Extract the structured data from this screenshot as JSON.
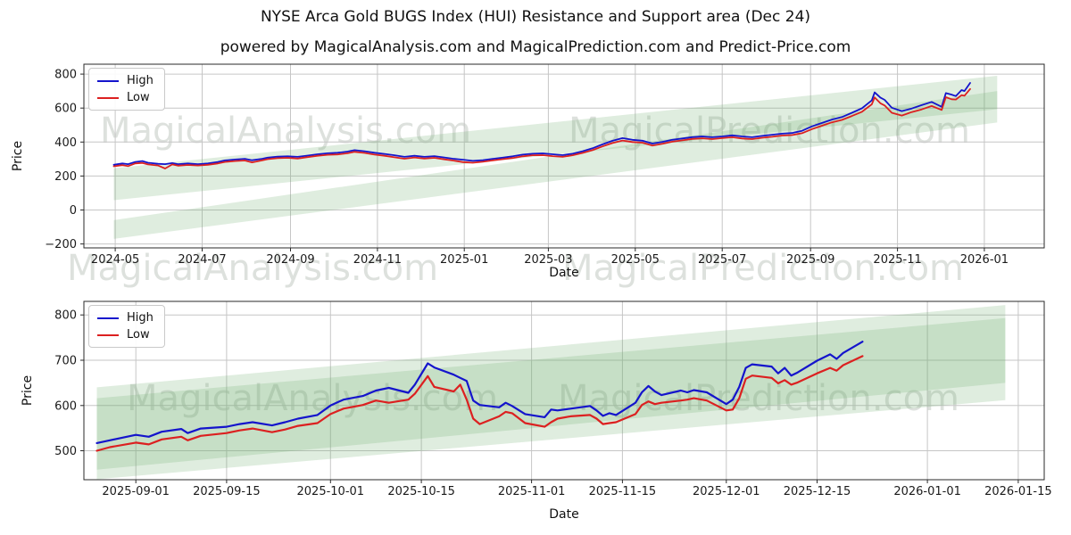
{
  "figure": {
    "title": "NYSE Arca Gold BUGS Index (HUI) Resistance and Support area (Dec 24)",
    "subtitle": "powered by MagicalAnalysis.com and MagicalPrediction.com and Predict-Price.com",
    "watermark_left": "MagicalAnalysis.com",
    "watermark_right": "MagicalPrediction.com"
  },
  "colors": {
    "high": "#1414cc",
    "low": "#dc2020",
    "band": "#6eaf6e",
    "grid": "#c6c6c6",
    "spine": "#2a2a2a",
    "text": "#1a1a1a"
  },
  "chart_data": [
    {
      "type": "line",
      "name": "full-history",
      "xlabel": "Date",
      "ylabel": "Price",
      "grid": true,
      "legend": {
        "position": "upper-left",
        "entries": [
          "High",
          "Low"
        ]
      },
      "x_domain": [
        "2024-04-09",
        "2026-02-12"
      ],
      "y_domain": [
        -223,
        858
      ],
      "x_ticks": [
        {
          "label": "2024-05",
          "date": "2024-05-01"
        },
        {
          "label": "2024-07",
          "date": "2024-07-01"
        },
        {
          "label": "2024-09",
          "date": "2024-09-01"
        },
        {
          "label": "2024-11",
          "date": "2024-11-01"
        },
        {
          "label": "2025-01",
          "date": "2025-01-01"
        },
        {
          "label": "2025-03",
          "date": "2025-03-01"
        },
        {
          "label": "2025-05",
          "date": "2025-05-01"
        },
        {
          "label": "2025-07",
          "date": "2025-07-01"
        },
        {
          "label": "2025-09",
          "date": "2025-09-01"
        },
        {
          "label": "2025-11",
          "date": "2025-11-01"
        },
        {
          "label": "2026-01",
          "date": "2026-01-01"
        }
      ],
      "y_ticks": [
        {
          "label": "−200",
          "value": -200
        },
        {
          "label": "0",
          "value": 0
        },
        {
          "label": "200",
          "value": 200
        },
        {
          "label": "400",
          "value": 400
        },
        {
          "label": "600",
          "value": 600
        },
        {
          "label": "800",
          "value": 800
        }
      ],
      "bands": [
        {
          "name": "resistance-area-band",
          "x0": "2024-04-30",
          "x1": "2026-01-10",
          "top": [
            245,
            790
          ],
          "bottom": [
            58,
            593
          ]
        },
        {
          "name": "support-area-band",
          "x0": "2024-04-30",
          "x1": "2026-01-10",
          "top": [
            -60,
            700
          ],
          "bottom": [
            -170,
            515
          ]
        }
      ],
      "series_names": [
        "High",
        "Low"
      ],
      "points": [
        [
          "2024-04-30",
          266,
          257
        ],
        [
          "2024-05-06",
          274,
          264
        ],
        [
          "2024-05-10",
          270,
          258
        ],
        [
          "2024-05-15",
          283,
          274
        ],
        [
          "2024-05-20",
          288,
          277
        ],
        [
          "2024-05-24",
          278,
          268
        ],
        [
          "2024-05-31",
          272,
          262
        ],
        [
          "2024-06-05",
          270,
          244
        ],
        [
          "2024-06-10",
          276,
          268
        ],
        [
          "2024-06-14",
          270,
          261
        ],
        [
          "2024-06-21",
          274,
          265
        ],
        [
          "2024-06-28",
          270,
          262
        ],
        [
          "2024-07-05",
          274,
          266
        ],
        [
          "2024-07-12",
          283,
          274
        ],
        [
          "2024-07-17",
          292,
          283
        ],
        [
          "2024-07-24",
          297,
          288
        ],
        [
          "2024-07-31",
          301,
          291
        ],
        [
          "2024-08-05",
          293,
          280
        ],
        [
          "2024-08-12",
          301,
          292
        ],
        [
          "2024-08-16",
          308,
          299
        ],
        [
          "2024-08-23",
          314,
          305
        ],
        [
          "2024-08-30",
          316,
          307
        ],
        [
          "2024-09-06",
          313,
          303
        ],
        [
          "2024-09-13",
          320,
          311
        ],
        [
          "2024-09-20",
          328,
          319
        ],
        [
          "2024-09-27",
          334,
          325
        ],
        [
          "2024-10-04",
          337,
          327
        ],
        [
          "2024-10-11",
          344,
          334
        ],
        [
          "2024-10-16",
          352,
          342
        ],
        [
          "2024-10-23",
          346,
          336
        ],
        [
          "2024-10-30",
          337,
          326
        ],
        [
          "2024-11-06",
          330,
          319
        ],
        [
          "2024-11-13",
          322,
          310
        ],
        [
          "2024-11-20",
          313,
          302
        ],
        [
          "2024-11-27",
          319,
          309
        ],
        [
          "2024-12-04",
          313,
          303
        ],
        [
          "2024-12-11",
          317,
          307
        ],
        [
          "2024-12-18",
          309,
          298
        ],
        [
          "2024-12-24",
          302,
          291
        ],
        [
          "2024-12-31",
          296,
          282
        ],
        [
          "2025-01-07",
          289,
          278
        ],
        [
          "2025-01-14",
          293,
          284
        ],
        [
          "2025-01-21",
          301,
          292
        ],
        [
          "2025-01-28",
          308,
          299
        ],
        [
          "2025-02-04",
          316,
          306
        ],
        [
          "2025-02-11",
          326,
          316
        ],
        [
          "2025-02-18",
          331,
          322
        ],
        [
          "2025-02-25",
          333,
          323
        ],
        [
          "2025-03-04",
          328,
          317
        ],
        [
          "2025-03-11",
          323,
          313
        ],
        [
          "2025-03-18",
          331,
          322
        ],
        [
          "2025-03-25",
          346,
          336
        ],
        [
          "2025-04-01",
          363,
          352
        ],
        [
          "2025-04-08",
          386,
          374
        ],
        [
          "2025-04-15",
          407,
          394
        ],
        [
          "2025-04-22",
          423,
          409
        ],
        [
          "2025-04-29",
          413,
          400
        ],
        [
          "2025-05-06",
          408,
          396
        ],
        [
          "2025-05-13",
          391,
          379
        ],
        [
          "2025-05-20",
          401,
          390
        ],
        [
          "2025-05-27",
          413,
          402
        ],
        [
          "2025-06-03",
          421,
          410
        ],
        [
          "2025-06-10",
          429,
          418
        ],
        [
          "2025-06-17",
          433,
          422
        ],
        [
          "2025-06-24",
          428,
          417
        ],
        [
          "2025-07-01",
          433,
          423
        ],
        [
          "2025-07-08",
          439,
          428
        ],
        [
          "2025-07-15",
          433,
          421
        ],
        [
          "2025-07-22",
          428,
          417
        ],
        [
          "2025-07-29",
          436,
          425
        ],
        [
          "2025-08-05",
          443,
          431
        ],
        [
          "2025-08-12",
          449,
          438
        ],
        [
          "2025-08-19",
          453,
          441
        ],
        [
          "2025-08-26",
          466,
          452
        ],
        [
          "2025-09-02",
          492,
          476
        ],
        [
          "2025-09-09",
          512,
          496
        ],
        [
          "2025-09-16",
          532,
          516
        ],
        [
          "2025-09-23",
          547,
          530
        ],
        [
          "2025-09-30",
          572,
          553
        ],
        [
          "2025-10-07",
          598,
          578
        ],
        [
          "2025-10-14",
          645,
          622
        ],
        [
          "2025-10-16",
          692,
          663
        ],
        [
          "2025-10-20",
          662,
          628
        ],
        [
          "2025-10-23",
          648,
          615
        ],
        [
          "2025-10-28",
          602,
          572
        ],
        [
          "2025-11-04",
          582,
          556
        ],
        [
          "2025-11-11",
          597,
          576
        ],
        [
          "2025-11-18",
          617,
          592
        ],
        [
          "2025-11-25",
          636,
          612
        ],
        [
          "2025-12-02",
          607,
          589
        ],
        [
          "2025-12-05",
          688,
          664
        ],
        [
          "2025-12-09",
          679,
          652
        ],
        [
          "2025-12-12",
          670,
          650
        ],
        [
          "2025-12-16",
          706,
          676
        ],
        [
          "2025-12-18",
          700,
          672
        ],
        [
          "2025-12-22",
          748,
          712
        ]
      ]
    },
    {
      "type": "line",
      "name": "recent-zoom",
      "xlabel": "Date",
      "ylabel": "Price",
      "grid": true,
      "legend": {
        "position": "upper-left",
        "entries": [
          "High",
          "Low"
        ]
      },
      "x_domain": [
        "2025-08-24",
        "2026-01-19"
      ],
      "y_domain": [
        436,
        830
      ],
      "x_ticks": [
        {
          "label": "2025-09-01",
          "date": "2025-09-01"
        },
        {
          "label": "2025-09-15",
          "date": "2025-09-15"
        },
        {
          "label": "2025-10-01",
          "date": "2025-10-01"
        },
        {
          "label": "2025-10-15",
          "date": "2025-10-15"
        },
        {
          "label": "2025-11-01",
          "date": "2025-11-01"
        },
        {
          "label": "2025-11-15",
          "date": "2025-11-15"
        },
        {
          "label": "2025-12-01",
          "date": "2025-12-01"
        },
        {
          "label": "2025-12-15",
          "date": "2025-12-15"
        },
        {
          "label": "2026-01-01",
          "date": "2026-01-01"
        },
        {
          "label": "2026-01-15",
          "date": "2026-01-15"
        }
      ],
      "y_ticks": [
        {
          "label": "500",
          "value": 500
        },
        {
          "label": "600",
          "value": 600
        },
        {
          "label": "700",
          "value": 700
        },
        {
          "label": "800",
          "value": 800
        }
      ],
      "bands": [
        {
          "name": "resistance-area-band",
          "x0": "2025-08-26",
          "x1": "2026-01-13",
          "top": [
            640,
            822
          ],
          "bottom": [
            458,
            650
          ]
        },
        {
          "name": "support-area-band",
          "x0": "2025-08-26",
          "x1": "2026-01-13",
          "top": [
            616,
            793
          ],
          "bottom": [
            437,
            612
          ]
        }
      ],
      "series_names": [
        "High",
        "Low"
      ],
      "points": [
        [
          "2025-08-26",
          517,
          500
        ],
        [
          "2025-08-28",
          523,
          508
        ],
        [
          "2025-09-01",
          535,
          518
        ],
        [
          "2025-09-03",
          531,
          514
        ],
        [
          "2025-09-05",
          542,
          525
        ],
        [
          "2025-09-08",
          548,
          531
        ],
        [
          "2025-09-09",
          539,
          523
        ],
        [
          "2025-09-11",
          549,
          533
        ],
        [
          "2025-09-15",
          553,
          539
        ],
        [
          "2025-09-17",
          559,
          545
        ],
        [
          "2025-09-19",
          563,
          549
        ],
        [
          "2025-09-22",
          556,
          541
        ],
        [
          "2025-09-24",
          563,
          547
        ],
        [
          "2025-09-26",
          571,
          555
        ],
        [
          "2025-09-29",
          579,
          561
        ],
        [
          "2025-10-01",
          600,
          581
        ],
        [
          "2025-10-03",
          613,
          593
        ],
        [
          "2025-10-06",
          621,
          601
        ],
        [
          "2025-10-08",
          633,
          611
        ],
        [
          "2025-10-10",
          639,
          606
        ],
        [
          "2025-10-13",
          628,
          613
        ],
        [
          "2025-10-14",
          646,
          626
        ],
        [
          "2025-10-16",
          693,
          665
        ],
        [
          "2025-10-17",
          684,
          641
        ],
        [
          "2025-10-20",
          668,
          631
        ],
        [
          "2025-10-21",
          661,
          646
        ],
        [
          "2025-10-22",
          654,
          613
        ],
        [
          "2025-10-23",
          611,
          571
        ],
        [
          "2025-10-24",
          601,
          559
        ],
        [
          "2025-10-27",
          596,
          576
        ],
        [
          "2025-10-28",
          606,
          586
        ],
        [
          "2025-10-29",
          599,
          583
        ],
        [
          "2025-10-31",
          581,
          561
        ],
        [
          "2025-11-03",
          574,
          553
        ],
        [
          "2025-11-04",
          591,
          563
        ],
        [
          "2025-11-05",
          589,
          571
        ],
        [
          "2025-11-07",
          593,
          576
        ],
        [
          "2025-11-10",
          599,
          579
        ],
        [
          "2025-11-11",
          589,
          571
        ],
        [
          "2025-11-12",
          577,
          559
        ],
        [
          "2025-11-13",
          583,
          561
        ],
        [
          "2025-11-14",
          579,
          563
        ],
        [
          "2025-11-17",
          606,
          581
        ],
        [
          "2025-11-18",
          629,
          601
        ],
        [
          "2025-11-19",
          643,
          609
        ],
        [
          "2025-11-20",
          631,
          603
        ],
        [
          "2025-11-21",
          623,
          606
        ],
        [
          "2025-11-24",
          633,
          611
        ],
        [
          "2025-11-25",
          629,
          613
        ],
        [
          "2025-11-26",
          634,
          616
        ],
        [
          "2025-11-28",
          629,
          611
        ],
        [
          "2025-12-01",
          603,
          589
        ],
        [
          "2025-12-02",
          613,
          591
        ],
        [
          "2025-12-03",
          641,
          616
        ],
        [
          "2025-12-04",
          683,
          659
        ],
        [
          "2025-12-05",
          691,
          666
        ],
        [
          "2025-12-08",
          686,
          661
        ],
        [
          "2025-12-09",
          671,
          649
        ],
        [
          "2025-12-10",
          683,
          656
        ],
        [
          "2025-12-11",
          666,
          646
        ],
        [
          "2025-12-12",
          673,
          651
        ],
        [
          "2025-12-15",
          699,
          671
        ],
        [
          "2025-12-17",
          713,
          683
        ],
        [
          "2025-12-18",
          703,
          677
        ],
        [
          "2025-12-19",
          716,
          689
        ],
        [
          "2025-12-22",
          741,
          709
        ]
      ]
    }
  ]
}
